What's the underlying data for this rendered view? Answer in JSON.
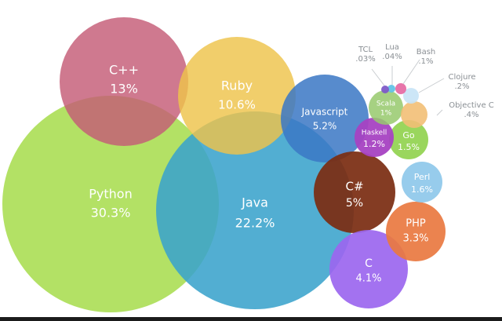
{
  "chart_data": {
    "type": "bubble",
    "title": "",
    "series": [
      {
        "name": "Python",
        "share": "30.3%",
        "value": 30.3,
        "color": "#a7dc4c"
      },
      {
        "name": "Java",
        "share": "22.2%",
        "value": 22.2,
        "color": "#3aa3cc"
      },
      {
        "name": "C++",
        "share": "13%",
        "value": 13.0,
        "color": "#c55c76"
      },
      {
        "name": "Ruby",
        "share": "10.6%",
        "value": 10.6,
        "color": "#eec34b"
      },
      {
        "name": "Javascript",
        "share": "5.2%",
        "value": 5.2,
        "color": "#3b78c5"
      },
      {
        "name": "C#",
        "share": "5%",
        "value": 5.0,
        "color": "#7b2d12"
      },
      {
        "name": "C",
        "share": "4.1%",
        "value": 4.1,
        "color": "#9b66ef"
      },
      {
        "name": "PHP",
        "share": "3.3%",
        "value": 3.3,
        "color": "#e97840"
      },
      {
        "name": "Perl",
        "share": "1.6%",
        "value": 1.6,
        "color": "#8cc7ea"
      },
      {
        "name": "Go",
        "share": "1.5%",
        "value": 1.5,
        "color": "#8fd24b"
      },
      {
        "name": "Haskell",
        "share": "1.2%",
        "value": 1.2,
        "color": "#a742c2"
      },
      {
        "name": "Scala",
        "share": "1%",
        "value": 1.0,
        "color": "#97c96c"
      },
      {
        "name": "Objective C",
        "share": ".4%",
        "value": 0.4,
        "color": "#f2bf75"
      },
      {
        "name": "Clojure",
        "share": ".2%",
        "value": 0.2,
        "color": "#c6e3f6"
      },
      {
        "name": "Bash",
        "share": ".1%",
        "value": 0.1,
        "color": "#e66ea5"
      },
      {
        "name": "Lua",
        "share": ".04%",
        "value": 0.04,
        "color": "#63c2e6"
      },
      {
        "name": "TCL",
        "share": ".03%",
        "value": 0.03,
        "color": "#7d5ac8"
      }
    ]
  }
}
